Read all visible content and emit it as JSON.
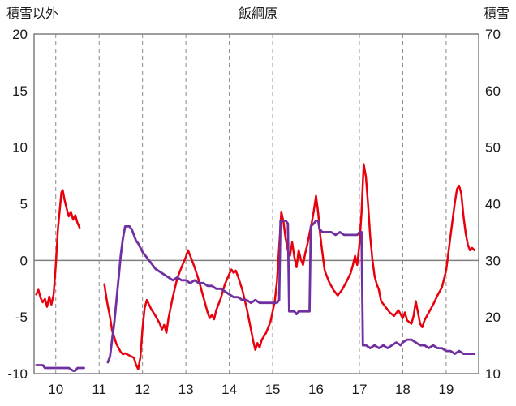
{
  "header": {
    "left_axis_title": "積雪以外",
    "chart_title": "飯綱原",
    "right_axis_title": "積雪"
  },
  "chart_data": {
    "type": "line",
    "title": "飯綱原",
    "x_axis": {
      "min": 9.5,
      "max": 19.75,
      "ticks": [
        10,
        11,
        12,
        13,
        14,
        15,
        16,
        17,
        18,
        19
      ]
    },
    "left_axis": {
      "label": "積雪以外",
      "min": -10,
      "max": 20,
      "ticks": [
        -10,
        -5,
        0,
        5,
        10,
        15,
        20
      ]
    },
    "right_axis": {
      "label": "積雪",
      "min": 10,
      "max": 70,
      "ticks": [
        10,
        20,
        30,
        40,
        50,
        60,
        70
      ]
    },
    "grid": {
      "vertical_dashed_at_x_ticks": true,
      "horizontal_zero_line": true,
      "border": true
    },
    "colors": {
      "grid": "#8a8a8a",
      "axis": "#7f7f7f",
      "zero_line": "#7f7f7f",
      "text": "#1a1a1a"
    },
    "series": [
      {
        "name": "積雪以外",
        "axis": "left",
        "color": "#e8000d",
        "width": 2.5,
        "points": [
          [
            9.55,
            -3.0
          ],
          [
            9.6,
            -2.6
          ],
          [
            9.65,
            -3.3
          ],
          [
            9.7,
            -3.7
          ],
          [
            9.75,
            -3.4
          ],
          [
            9.8,
            -4.1
          ],
          [
            9.85,
            -3.2
          ],
          [
            9.9,
            -3.9
          ],
          [
            9.95,
            -3.0
          ],
          [
            10.0,
            -0.5
          ],
          [
            10.05,
            2.8
          ],
          [
            10.1,
            4.8
          ],
          [
            10.13,
            6.0
          ],
          [
            10.16,
            6.2
          ],
          [
            10.2,
            5.4
          ],
          [
            10.25,
            4.6
          ],
          [
            10.3,
            3.9
          ],
          [
            10.35,
            4.3
          ],
          [
            10.4,
            3.6
          ],
          [
            10.45,
            4.0
          ],
          [
            10.5,
            3.3
          ],
          [
            10.55,
            2.9
          ],
          null,
          [
            11.12,
            -2.1
          ],
          [
            11.18,
            -3.6
          ],
          [
            11.25,
            -5.0
          ],
          [
            11.3,
            -6.2
          ],
          [
            11.4,
            -7.4
          ],
          [
            11.5,
            -8.1
          ],
          [
            11.55,
            -8.3
          ],
          [
            11.6,
            -8.2
          ],
          [
            11.7,
            -8.4
          ],
          [
            11.8,
            -8.6
          ],
          [
            11.85,
            -9.2
          ],
          [
            11.9,
            -9.6
          ],
          [
            11.95,
            -8.6
          ],
          [
            12.0,
            -6.0
          ],
          [
            12.05,
            -4.2
          ],
          [
            12.1,
            -3.5
          ],
          [
            12.15,
            -3.9
          ],
          [
            12.2,
            -4.3
          ],
          [
            12.3,
            -4.9
          ],
          [
            12.4,
            -5.6
          ],
          [
            12.45,
            -6.1
          ],
          [
            12.5,
            -5.7
          ],
          [
            12.55,
            -6.4
          ],
          [
            12.6,
            -5.1
          ],
          [
            12.7,
            -3.2
          ],
          [
            12.8,
            -1.6
          ],
          [
            12.9,
            -0.6
          ],
          [
            13.0,
            0.3
          ],
          [
            13.05,
            0.9
          ],
          [
            13.1,
            0.4
          ],
          [
            13.2,
            -0.6
          ],
          [
            13.3,
            -1.8
          ],
          [
            13.4,
            -3.2
          ],
          [
            13.5,
            -4.6
          ],
          [
            13.55,
            -5.1
          ],
          [
            13.6,
            -4.8
          ],
          [
            13.65,
            -5.2
          ],
          [
            13.7,
            -4.4
          ],
          [
            13.8,
            -3.4
          ],
          [
            13.9,
            -2.1
          ],
          [
            14.0,
            -1.2
          ],
          [
            14.05,
            -0.8
          ],
          [
            14.1,
            -1.1
          ],
          [
            14.15,
            -0.9
          ],
          [
            14.2,
            -1.4
          ],
          [
            14.3,
            -2.6
          ],
          [
            14.4,
            -4.2
          ],
          [
            14.5,
            -6.1
          ],
          [
            14.55,
            -7.1
          ],
          [
            14.6,
            -7.9
          ],
          [
            14.65,
            -7.3
          ],
          [
            14.7,
            -7.7
          ],
          [
            14.75,
            -7.0
          ],
          [
            14.85,
            -6.4
          ],
          [
            14.95,
            -5.4
          ],
          [
            15.05,
            -3.6
          ],
          [
            15.1,
            -1.8
          ],
          [
            15.15,
            1.2
          ],
          [
            15.2,
            4.3
          ],
          [
            15.25,
            3.4
          ],
          [
            15.3,
            1.9
          ],
          [
            15.35,
            0.9
          ],
          [
            15.4,
            0.4
          ],
          [
            15.45,
            1.6
          ],
          [
            15.5,
            0.3
          ],
          [
            15.55,
            -0.6
          ],
          [
            15.6,
            0.9
          ],
          [
            15.65,
            0.1
          ],
          [
            15.7,
            -0.4
          ],
          [
            15.75,
            0.6
          ],
          [
            15.8,
            1.4
          ],
          [
            15.85,
            2.4
          ],
          [
            15.9,
            3.3
          ],
          [
            15.95,
            4.4
          ],
          [
            16.0,
            5.7
          ],
          [
            16.05,
            4.2
          ],
          [
            16.1,
            2.1
          ],
          [
            16.15,
            0.6
          ],
          [
            16.2,
            -0.9
          ],
          [
            16.3,
            -1.9
          ],
          [
            16.4,
            -2.6
          ],
          [
            16.5,
            -3.1
          ],
          [
            16.6,
            -2.6
          ],
          [
            16.7,
            -1.9
          ],
          [
            16.8,
            -1.1
          ],
          [
            16.85,
            -0.4
          ],
          [
            16.9,
            0.4
          ],
          [
            16.95,
            -0.4
          ],
          [
            17.0,
            1.4
          ],
          [
            17.05,
            4.2
          ],
          [
            17.1,
            8.5
          ],
          [
            17.15,
            7.4
          ],
          [
            17.2,
            4.9
          ],
          [
            17.25,
            2.1
          ],
          [
            17.3,
            0.1
          ],
          [
            17.35,
            -1.4
          ],
          [
            17.4,
            -2.1
          ],
          [
            17.45,
            -2.6
          ],
          [
            17.5,
            -3.6
          ],
          [
            17.6,
            -4.1
          ],
          [
            17.7,
            -4.6
          ],
          [
            17.8,
            -4.9
          ],
          [
            17.9,
            -4.4
          ],
          [
            18.0,
            -5.1
          ],
          [
            18.05,
            -4.6
          ],
          [
            18.1,
            -5.3
          ],
          [
            18.2,
            -5.6
          ],
          [
            18.25,
            -4.9
          ],
          [
            18.3,
            -3.6
          ],
          [
            18.35,
            -4.6
          ],
          [
            18.4,
            -5.6
          ],
          [
            18.45,
            -5.9
          ],
          [
            18.5,
            -5.3
          ],
          [
            18.6,
            -4.6
          ],
          [
            18.7,
            -3.9
          ],
          [
            18.8,
            -3.1
          ],
          [
            18.9,
            -2.4
          ],
          [
            19.0,
            -0.9
          ],
          [
            19.1,
            2.1
          ],
          [
            19.2,
            5.1
          ],
          [
            19.25,
            6.3
          ],
          [
            19.3,
            6.6
          ],
          [
            19.35,
            5.9
          ],
          [
            19.4,
            3.9
          ],
          [
            19.45,
            2.4
          ],
          [
            19.5,
            1.4
          ],
          [
            19.55,
            0.9
          ],
          [
            19.6,
            1.1
          ],
          [
            19.65,
            0.9
          ]
        ]
      },
      {
        "name": "積雪",
        "axis": "right",
        "color": "#7030a0",
        "width": 2.8,
        "points": [
          [
            9.55,
            11.5
          ],
          [
            9.7,
            11.5
          ],
          [
            9.75,
            11.0
          ],
          [
            9.9,
            11.0
          ],
          [
            10.0,
            11.0
          ],
          [
            10.1,
            11.0
          ],
          [
            10.2,
            11.0
          ],
          [
            10.3,
            11.0
          ],
          [
            10.4,
            10.5
          ],
          [
            10.45,
            10.5
          ],
          [
            10.5,
            11.0
          ],
          [
            10.6,
            11.0
          ],
          [
            10.65,
            11.0
          ],
          null,
          [
            11.2,
            12.0
          ],
          [
            11.25,
            13.0
          ],
          [
            11.3,
            16.0
          ],
          [
            11.35,
            19.0
          ],
          [
            11.4,
            23.0
          ],
          [
            11.45,
            27.0
          ],
          [
            11.5,
            31.0
          ],
          [
            11.55,
            34.0
          ],
          [
            11.6,
            36.0
          ],
          [
            11.65,
            36.0
          ],
          [
            11.7,
            36.0
          ],
          [
            11.75,
            35.5
          ],
          [
            11.8,
            34.5
          ],
          [
            11.85,
            33.5
          ],
          [
            11.9,
            33.0
          ],
          [
            12.0,
            31.5
          ],
          [
            12.1,
            30.5
          ],
          [
            12.2,
            29.5
          ],
          [
            12.3,
            28.5
          ],
          [
            12.4,
            28.0
          ],
          [
            12.5,
            27.5
          ],
          [
            12.6,
            27.0
          ],
          [
            12.7,
            26.5
          ],
          [
            12.8,
            27.0
          ],
          [
            12.9,
            26.5
          ],
          [
            13.0,
            26.5
          ],
          [
            13.1,
            26.0
          ],
          [
            13.2,
            26.5
          ],
          [
            13.3,
            26.0
          ],
          [
            13.4,
            26.0
          ],
          [
            13.5,
            25.5
          ],
          [
            13.6,
            25.5
          ],
          [
            13.7,
            25.0
          ],
          [
            13.8,
            25.0
          ],
          [
            13.9,
            24.5
          ],
          [
            14.0,
            24.0
          ],
          [
            14.1,
            23.5
          ],
          [
            14.2,
            23.5
          ],
          [
            14.3,
            23.0
          ],
          [
            14.4,
            23.0
          ],
          [
            14.5,
            22.5
          ],
          [
            14.6,
            23.0
          ],
          [
            14.7,
            22.5
          ],
          [
            14.8,
            22.5
          ],
          [
            14.9,
            22.5
          ],
          [
            15.0,
            22.5
          ],
          [
            15.1,
            22.5
          ],
          [
            15.15,
            23.0
          ],
          [
            15.18,
            37.0
          ],
          [
            15.25,
            37.0
          ],
          [
            15.3,
            37.0
          ],
          [
            15.35,
            36.5
          ],
          [
            15.38,
            21.0
          ],
          [
            15.45,
            21.0
          ],
          [
            15.5,
            21.0
          ],
          [
            15.55,
            20.5
          ],
          [
            15.6,
            21.0
          ],
          [
            15.7,
            21.0
          ],
          [
            15.8,
            21.0
          ],
          [
            15.85,
            21.0
          ],
          [
            15.88,
            36.0
          ],
          [
            15.95,
            36.5
          ],
          [
            16.0,
            37.0
          ],
          [
            16.05,
            37.0
          ],
          [
            16.08,
            35.5
          ],
          [
            16.15,
            35.0
          ],
          [
            16.25,
            35.0
          ],
          [
            16.35,
            35.0
          ],
          [
            16.45,
            34.5
          ],
          [
            16.55,
            35.0
          ],
          [
            16.65,
            34.5
          ],
          [
            16.75,
            34.5
          ],
          [
            16.85,
            34.5
          ],
          [
            16.95,
            34.5
          ],
          [
            17.0,
            35.0
          ],
          [
            17.05,
            35.0
          ],
          [
            17.08,
            15.0
          ],
          [
            17.15,
            15.0
          ],
          [
            17.25,
            14.5
          ],
          [
            17.35,
            15.0
          ],
          [
            17.45,
            14.5
          ],
          [
            17.55,
            15.0
          ],
          [
            17.65,
            14.5
          ],
          [
            17.75,
            15.0
          ],
          [
            17.85,
            15.5
          ],
          [
            17.95,
            15.0
          ],
          [
            18.0,
            15.5
          ],
          [
            18.1,
            16.0
          ],
          [
            18.2,
            16.0
          ],
          [
            18.3,
            15.5
          ],
          [
            18.4,
            15.0
          ],
          [
            18.5,
            15.0
          ],
          [
            18.6,
            14.5
          ],
          [
            18.7,
            15.0
          ],
          [
            18.8,
            14.5
          ],
          [
            18.9,
            14.5
          ],
          [
            19.0,
            14.0
          ],
          [
            19.1,
            14.0
          ],
          [
            19.2,
            13.5
          ],
          [
            19.3,
            14.0
          ],
          [
            19.4,
            13.5
          ],
          [
            19.5,
            13.5
          ],
          [
            19.6,
            13.5
          ],
          [
            19.65,
            13.5
          ]
        ]
      }
    ]
  }
}
